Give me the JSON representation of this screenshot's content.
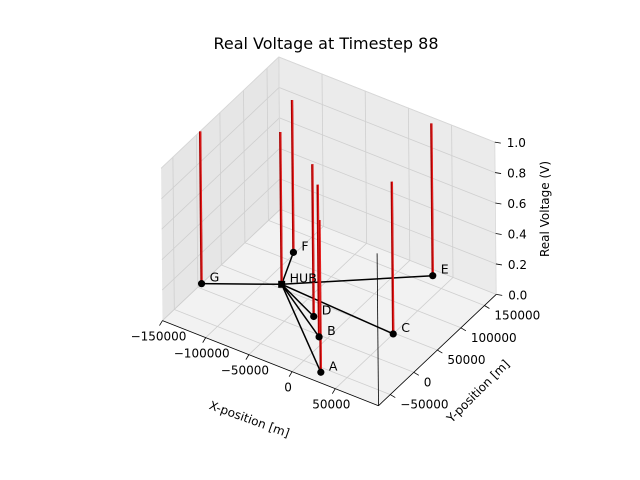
{
  "chart_data": {
    "type": "3d-stem",
    "title": "Real Voltage at Timestep 88",
    "xlabel": "X-position [m]",
    "ylabel": "Y-position [m]",
    "zlabel": "Real Voltage (V)",
    "xlim": [
      -150000,
      100000
    ],
    "ylim": [
      -75000,
      175000
    ],
    "zlim": [
      0,
      1.0
    ],
    "x_ticks": [
      -150000,
      -100000,
      -50000,
      0,
      50000
    ],
    "x_tick_labels": [
      "−150000",
      "−100000",
      "−50000",
      "0",
      "50000"
    ],
    "y_ticks": [
      -50000,
      0,
      50000,
      100000,
      150000
    ],
    "y_tick_labels": [
      "−50000",
      "0",
      "50000",
      "100000",
      "150000"
    ],
    "z_ticks": [
      0.0,
      0.2,
      0.4,
      0.6,
      0.8,
      1.0
    ],
    "z_tick_labels": [
      "0.0",
      "0.2",
      "0.4",
      "0.6",
      "0.8",
      "1.0"
    ],
    "grid": true,
    "hub": "HUB",
    "nodes": [
      {
        "label": "HUB",
        "x": -84000,
        "y": 57000,
        "voltage": 1.0
      },
      {
        "label": "A",
        "x": 24000,
        "y": -58000,
        "voltage": 1.0
      },
      {
        "label": "B",
        "x": -8000,
        "y": -3000,
        "voltage": 1.0
      },
      {
        "label": "C",
        "x": 50000,
        "y": 48000,
        "voltage": 1.0
      },
      {
        "label": "D",
        "x": -30000,
        "y": 26000,
        "voltage": 1.0
      },
      {
        "label": "E",
        "x": 32000,
        "y": 165000,
        "voltage": 1.0
      },
      {
        "label": "F",
        "x": -102000,
        "y": 115000,
        "voltage": 1.0
      },
      {
        "label": "G",
        "x": -150000,
        "y": 8000,
        "voltage": 1.0
      }
    ],
    "colors": {
      "stem": "#aa0000",
      "stem_highlight": "#ff2a2a",
      "edge": "#000000",
      "marker": "#000000"
    }
  }
}
